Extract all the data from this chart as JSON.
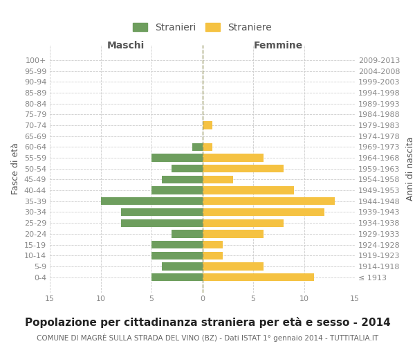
{
  "age_groups": [
    "100+",
    "95-99",
    "90-94",
    "85-89",
    "80-84",
    "75-79",
    "70-74",
    "65-69",
    "60-64",
    "55-59",
    "50-54",
    "45-49",
    "40-44",
    "35-39",
    "30-34",
    "25-29",
    "20-24",
    "15-19",
    "10-14",
    "5-9",
    "0-4"
  ],
  "birth_years": [
    "≤ 1913",
    "1914-1918",
    "1919-1923",
    "1924-1928",
    "1929-1933",
    "1934-1938",
    "1939-1943",
    "1944-1948",
    "1949-1953",
    "1954-1958",
    "1959-1963",
    "1964-1968",
    "1969-1973",
    "1974-1978",
    "1979-1983",
    "1984-1988",
    "1989-1993",
    "1994-1998",
    "1999-2003",
    "2004-2008",
    "2009-2013"
  ],
  "males": [
    0,
    0,
    0,
    0,
    0,
    0,
    0,
    0,
    1,
    5,
    3,
    4,
    5,
    10,
    8,
    8,
    3,
    5,
    5,
    4,
    5
  ],
  "females": [
    0,
    0,
    0,
    0,
    0,
    0,
    1,
    0,
    1,
    6,
    8,
    3,
    9,
    13,
    12,
    8,
    6,
    2,
    2,
    6,
    11
  ],
  "male_color": "#6e9e5e",
  "female_color": "#f5c242",
  "title": "Popolazione per cittadinanza straniera per età e sesso - 2014",
  "subtitle": "COMUNE DI MAGRÈ SULLA STRADA DEL VINO (BZ) - Dati ISTAT 1° gennaio 2014 - TUTTITALIA.IT",
  "ylabel_left": "Fasce di età",
  "ylabel_right": "Anni di nascita",
  "xlabel_left": "Maschi",
  "xlabel_right": "Femmine",
  "legend_male": "Stranieri",
  "legend_female": "Straniere",
  "xlim": 15,
  "background_color": "#ffffff",
  "grid_color": "#cccccc",
  "center_line_color": "#999966",
  "tick_color": "#888888",
  "label_color": "#555555",
  "title_fontsize": 11,
  "subtitle_fontsize": 7.5,
  "axis_label_fontsize": 9,
  "tick_fontsize": 8
}
